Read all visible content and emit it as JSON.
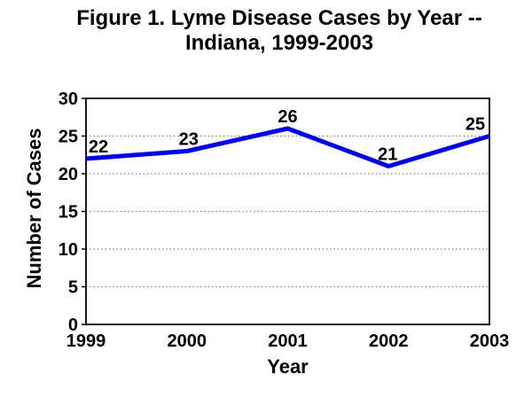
{
  "figure": {
    "title_line1": "Figure 1. Lyme Disease Cases by Year --",
    "title_line2": "Indiana, 1999-2003"
  },
  "chart_data": {
    "type": "line",
    "title": "Figure 1. Lyme Disease Cases by Year -- Indiana, 1999-2003",
    "categories": [
      "1999",
      "2000",
      "2001",
      "2002",
      "2003"
    ],
    "values": [
      22,
      23,
      26,
      21,
      25
    ],
    "xlabel": "Year",
    "ylabel": "Number of Cases",
    "ylim": [
      0,
      30
    ],
    "ytick_interval": 5,
    "yticks": [
      0,
      5,
      10,
      15,
      20,
      25,
      30
    ],
    "grid": "horizontal-dotted",
    "legend": "none",
    "colors": {
      "line": "#0000e6",
      "grid": "#7f7f7f",
      "axis": "#000000",
      "text": "#000000",
      "background": "#ffffff"
    }
  }
}
